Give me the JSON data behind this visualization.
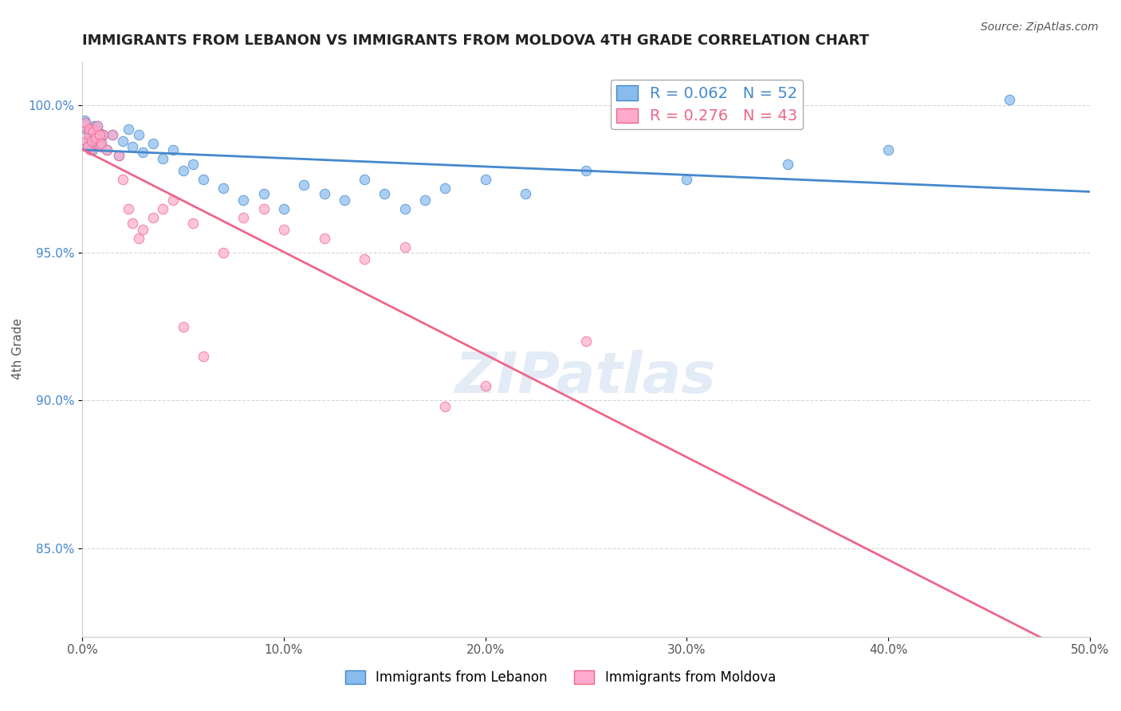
{
  "title": "IMMIGRANTS FROM LEBANON VS IMMIGRANTS FROM MOLDOVA 4TH GRADE CORRELATION CHART",
  "source": "Source: ZipAtlas.com",
  "xlabel": "",
  "ylabel": "4th Grade",
  "legend_labels": [
    "Immigrants from Lebanon",
    "Immigrants from Moldova"
  ],
  "r_lebanon": 0.062,
  "n_lebanon": 52,
  "r_moldova": 0.276,
  "n_moldova": 43,
  "color_lebanon": "#88bbee",
  "color_moldova": "#ffaacc",
  "regression_color_lebanon": "#4488cc",
  "regression_color_moldova": "#ee6688",
  "xmin": 0.0,
  "xmax": 50.0,
  "ymin": 82.0,
  "ymax": 101.5,
  "yticks": [
    85.0,
    90.0,
    95.0,
    100.0
  ],
  "ytick_labels": [
    "85.0%",
    "90.0%",
    "95.0%",
    "100.0%"
  ],
  "xticks": [
    0.0,
    10.0,
    20.0,
    30.0,
    40.0,
    50.0
  ],
  "xtick_labels": [
    "0.0%",
    "10.0%",
    "20.0%",
    "30.0%",
    "40.0%",
    "50.0%"
  ],
  "lebanon_x": [
    0.1,
    0.2,
    0.3,
    0.4,
    0.5,
    0.6,
    0.7,
    0.8,
    0.9,
    1.0,
    0.15,
    0.25,
    0.35,
    0.45,
    0.55,
    0.65,
    0.75,
    0.85,
    0.95,
    1.2,
    1.5,
    1.8,
    2.0,
    2.3,
    2.5,
    2.8,
    3.0,
    3.5,
    4.0,
    4.5,
    5.0,
    5.5,
    6.0,
    7.0,
    8.0,
    9.0,
    10.0,
    11.0,
    12.0,
    13.0,
    14.0,
    15.0,
    16.0,
    17.0,
    18.0,
    20.0,
    22.0,
    25.0,
    30.0,
    35.0,
    40.0,
    46.0
  ],
  "lebanon_y": [
    99.5,
    99.2,
    98.8,
    99.0,
    98.5,
    99.3,
    98.7,
    99.1,
    98.9,
    99.0,
    99.4,
    98.6,
    99.2,
    98.8,
    99.1,
    98.9,
    99.3,
    99.0,
    98.7,
    98.5,
    99.0,
    98.3,
    98.8,
    99.2,
    98.6,
    99.0,
    98.4,
    98.7,
    98.2,
    98.5,
    97.8,
    98.0,
    97.5,
    97.2,
    96.8,
    97.0,
    96.5,
    97.3,
    97.0,
    96.8,
    97.5,
    97.0,
    96.5,
    96.8,
    97.2,
    97.5,
    97.0,
    97.8,
    97.5,
    98.0,
    98.5,
    100.2
  ],
  "moldova_x": [
    0.1,
    0.2,
    0.3,
    0.4,
    0.5,
    0.6,
    0.7,
    0.8,
    0.9,
    1.0,
    0.15,
    0.25,
    0.35,
    0.45,
    0.55,
    0.65,
    0.75,
    0.85,
    0.95,
    1.2,
    1.5,
    1.8,
    2.0,
    2.3,
    2.5,
    2.8,
    3.0,
    3.5,
    4.0,
    4.5,
    5.0,
    5.5,
    6.0,
    7.0,
    8.0,
    9.0,
    10.0,
    12.0,
    14.0,
    16.0,
    18.0,
    20.0,
    25.0
  ],
  "moldova_y": [
    99.3,
    98.8,
    99.0,
    98.5,
    99.2,
    98.7,
    99.1,
    98.9,
    98.6,
    99.0,
    99.4,
    98.6,
    99.2,
    98.8,
    99.1,
    98.9,
    99.3,
    99.0,
    98.7,
    98.5,
    99.0,
    98.3,
    97.5,
    96.5,
    96.0,
    95.5,
    95.8,
    96.2,
    96.5,
    96.8,
    92.5,
    96.0,
    91.5,
    95.0,
    96.2,
    96.5,
    95.8,
    95.5,
    94.8,
    95.2,
    89.8,
    90.5,
    92.0
  ],
  "watermark": "ZIPatlas",
  "background_color": "#ffffff",
  "grid_color": "#cccccc"
}
